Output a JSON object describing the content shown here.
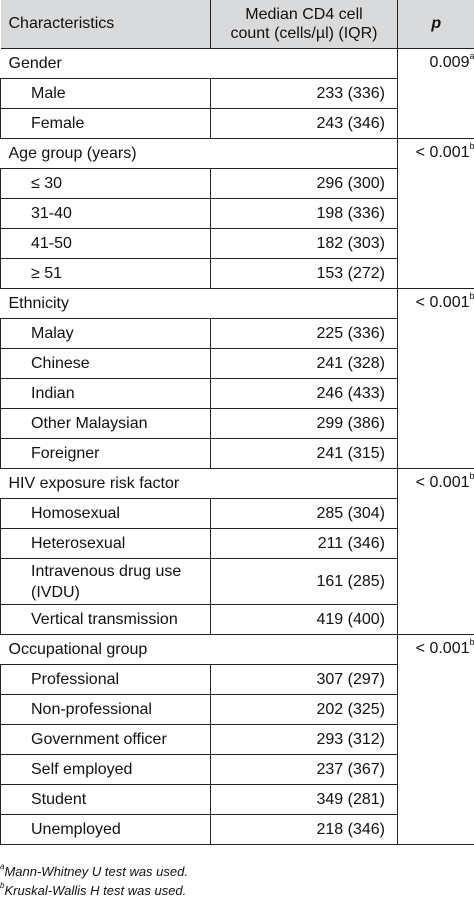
{
  "header": {
    "characteristics": "Characteristics",
    "median_line1": "Median CD4 cell",
    "median_line2": "count (cells/µl) (IQR)",
    "p": "p"
  },
  "groups": [
    {
      "name": "Gender",
      "p": "0.009",
      "p_sup": "a",
      "rows": [
        {
          "label": "Male",
          "value": "233 (336)"
        },
        {
          "label": "Female",
          "value": "243 (346)"
        }
      ]
    },
    {
      "name": "Age group (years)",
      "p": "< 0.001",
      "p_sup": "b",
      "rows": [
        {
          "label": "≤ 30",
          "value": "296 (300)"
        },
        {
          "label": "31-40",
          "value": "198 (336)"
        },
        {
          "label": "41-50",
          "value": "182 (303)"
        },
        {
          "label": "≥ 51",
          "value": "153 (272)"
        }
      ]
    },
    {
      "name": "Ethnicity",
      "p": "< 0.001",
      "p_sup": "b",
      "rows": [
        {
          "label": "Malay",
          "value": "225 (336)"
        },
        {
          "label": "Chinese",
          "value": "241 (328)"
        },
        {
          "label": "Indian",
          "value": "246 (433)"
        },
        {
          "label": "Other Malaysian",
          "value": "299 (386)"
        },
        {
          "label": "Foreigner",
          "value": "241 (315)"
        }
      ]
    },
    {
      "name": "HIV exposure risk factor",
      "p": "< 0.001",
      "p_sup": "b",
      "rows": [
        {
          "label": "Homosexual",
          "value": "285 (304)"
        },
        {
          "label": "Heterosexual",
          "value": "211 (346)"
        },
        {
          "label": "Intravenous drug use (IVDU)",
          "value": "161 (285)"
        },
        {
          "label": "Vertical transmission",
          "value": "419 (400)"
        }
      ]
    },
    {
      "name": "Occupational group",
      "p": "< 0.001",
      "p_sup": "b",
      "rows": [
        {
          "label": "Professional",
          "value": "307 (297)"
        },
        {
          "label": "Non-professional",
          "value": "202 (325)"
        },
        {
          "label": "Government officer",
          "value": "293 (312)"
        },
        {
          "label": "Self employed",
          "value": "237 (367)"
        },
        {
          "label": "Student",
          "value": "349 (281)"
        },
        {
          "label": "Unemployed",
          "value": "218 (346)"
        }
      ]
    }
  ],
  "footnotes": [
    {
      "sup": "a",
      "text": "Mann-Whitney U test was used."
    },
    {
      "sup": "b",
      "text": "Kruskal-Wallis H test was used."
    }
  ]
}
